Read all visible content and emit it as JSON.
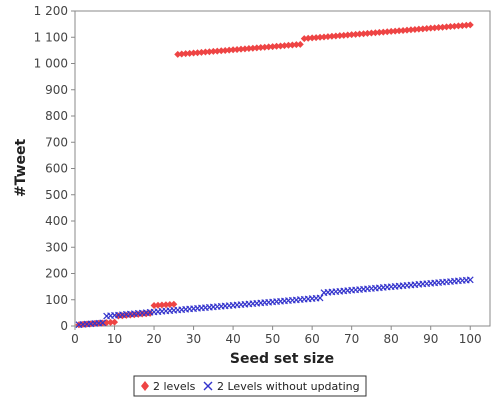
{
  "chart_data": {
    "type": "scatter",
    "title": "",
    "xlabel": "Seed set size",
    "ylabel": "#Tweet",
    "xlim": [
      0,
      105
    ],
    "ylim": [
      0,
      1200
    ],
    "x_ticks": [
      0,
      10,
      20,
      30,
      40,
      50,
      60,
      70,
      80,
      90,
      100
    ],
    "x_tick_labels": [
      "0",
      "10",
      "20",
      "30",
      "40",
      "50",
      "60",
      "70",
      "80",
      "90",
      "100"
    ],
    "y_ticks": [
      0,
      100,
      200,
      300,
      400,
      500,
      600,
      700,
      800,
      900,
      1000,
      1100,
      1200
    ],
    "y_tick_labels": [
      "0",
      "100",
      "200",
      "300",
      "400",
      "500",
      "600",
      "700",
      "800",
      "900",
      "1 000",
      "1 100",
      "1 200"
    ],
    "grid": false,
    "legend_position": "bottom",
    "series": [
      {
        "name": "2 levels",
        "marker": "diamond",
        "color": "#ee4444",
        "segments": [
          {
            "x_start": 1,
            "x_end": 10,
            "y_start": 5,
            "y_end": 15
          },
          {
            "x_start": 11,
            "x_end": 19,
            "y_start": 38,
            "y_end": 48
          },
          {
            "x_start": 20,
            "x_end": 25,
            "y_start": 78,
            "y_end": 83
          },
          {
            "x_start": 26,
            "x_end": 57,
            "y_start": 1035,
            "y_end": 1073
          },
          {
            "x_start": 58,
            "x_end": 100,
            "y_start": 1095,
            "y_end": 1147
          }
        ]
      },
      {
        "name": "2 Levels without updating",
        "marker": "x",
        "color": "#3333cc",
        "segments": [
          {
            "x_start": 1,
            "x_end": 7,
            "y_start": 5,
            "y_end": 12
          },
          {
            "x_start": 8,
            "x_end": 62,
            "y_start": 38,
            "y_end": 107
          },
          {
            "x_start": 63,
            "x_end": 100,
            "y_start": 127,
            "y_end": 176
          }
        ]
      }
    ]
  }
}
